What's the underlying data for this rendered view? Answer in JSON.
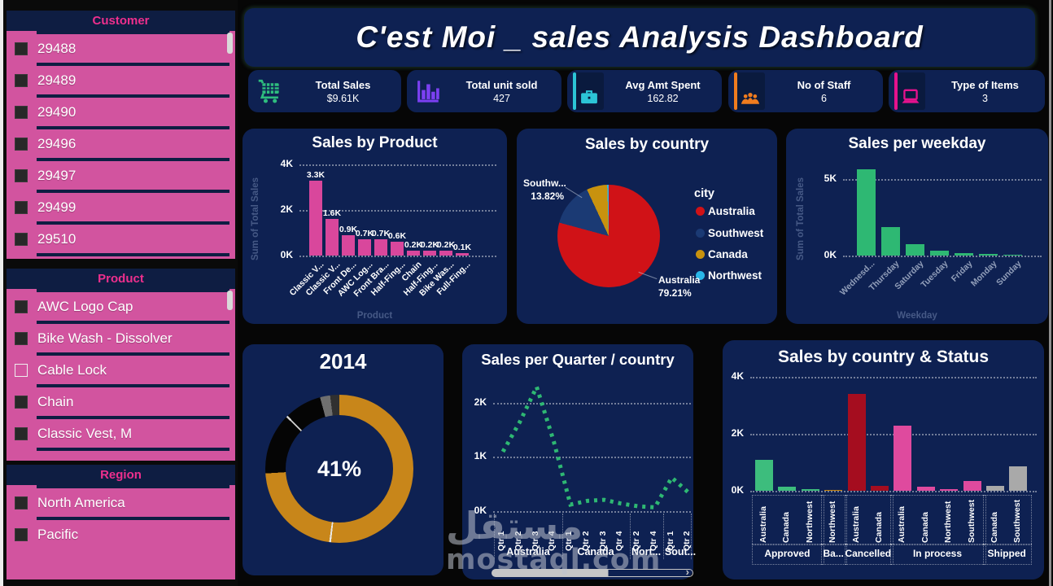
{
  "header": {
    "title": "C'est Moi _ sales Analysis Dashboard"
  },
  "sidebar": {
    "sections": [
      {
        "title": "Customer",
        "items": [
          {
            "label": "29488",
            "checked": true
          },
          {
            "label": "29489",
            "checked": true
          },
          {
            "label": "29490",
            "checked": true
          },
          {
            "label": "29496",
            "checked": true
          },
          {
            "label": "29497",
            "checked": true
          },
          {
            "label": "29499",
            "checked": true
          },
          {
            "label": "29510",
            "checked": true
          }
        ]
      },
      {
        "title": "Product",
        "items": [
          {
            "label": "AWC Logo Cap",
            "checked": true
          },
          {
            "label": "Bike Wash - Dissolver",
            "checked": true
          },
          {
            "label": "Cable Lock",
            "checked": false
          },
          {
            "label": "Chain",
            "checked": true
          },
          {
            "label": "Classic Vest, M",
            "checked": true
          }
        ]
      },
      {
        "title": "Region",
        "items": [
          {
            "label": "North America",
            "checked": true
          },
          {
            "label": "Pacific",
            "checked": true
          }
        ]
      }
    ]
  },
  "kpis": [
    {
      "label": "Total Sales",
      "value": "$9.61K",
      "icon": "cart-icon",
      "color": "#2ebd7e"
    },
    {
      "label": "Total unit sold",
      "value": "427",
      "icon": "bar-chart-icon",
      "color": "#7b40f2"
    },
    {
      "label": "Avg Amt Spent",
      "value": "162.82",
      "icon": "briefcase-icon",
      "color": "#2cc5d6"
    },
    {
      "label": "No of Staff",
      "value": "6",
      "icon": "people-icon",
      "color": "#f07c1e"
    },
    {
      "label": "Type of Items",
      "value": "3",
      "icon": "laptop-icon",
      "color": "#e5128d"
    }
  ],
  "chart_data": [
    {
      "type": "bar",
      "title": "Sales by Product",
      "categories": [
        "Classic V...",
        "Classic V...",
        "Front De...",
        "AWC Log...",
        "Front Bra...",
        "Half-Fing...",
        "Chain",
        "Half-Fing...",
        "Bike Was...",
        "Full-Fing..."
      ],
      "values": [
        3300,
        1600,
        900,
        700,
        700,
        600,
        200,
        200,
        200,
        100
      ],
      "value_labels": [
        "3.3K",
        "1.6K",
        "0.9K",
        "0.7K",
        "0.7K",
        "0.6K",
        "0.2K",
        "0.2K",
        "0.2K",
        "0.1K"
      ],
      "xlabel": "Product",
      "ylabel": "Sum of Total Sales",
      "yticks": [
        "0K",
        "2K",
        "4K"
      ],
      "ylim": [
        0,
        4000
      ],
      "grid": true,
      "color": "#d9479c"
    },
    {
      "type": "pie",
      "title": "Sales by country",
      "legend_title": "city",
      "legend_position": "right",
      "slices": [
        {
          "label": "Australia",
          "value": 79.21,
          "color": "#d01217"
        },
        {
          "label": "Southwest",
          "value": 13.82,
          "color": "#1b3a74"
        },
        {
          "label": "Canada",
          "value": 6.5,
          "color": "#c8920e"
        },
        {
          "label": "Northwest",
          "value": 0.47,
          "color": "#29b6e8"
        }
      ],
      "callouts": [
        {
          "label": "Southw...",
          "pct": "13.82%"
        },
        {
          "label": "Australia",
          "pct": "79.21%"
        }
      ]
    },
    {
      "type": "bar",
      "title": "Sales per weekday",
      "categories": [
        "Wednesd...",
        "Thursday",
        "Saturday",
        "Tuesday",
        "Friday",
        "Monday",
        "Sunday"
      ],
      "values": [
        5620,
        1840,
        750,
        300,
        150,
        80,
        60
      ],
      "xlabel": "Weekday",
      "ylabel": "Sum of Total Sales",
      "yticks": [
        "0K",
        "5K"
      ],
      "ylim": [
        0,
        6300
      ],
      "grid": true,
      "color": "#2eb873"
    },
    {
      "type": "donut",
      "title": "2014",
      "center_label": "41%",
      "segments": [
        {
          "pct": 51.8,
          "color": "#c8861a"
        },
        {
          "pct": 0.4,
          "color": "#e8e8e8"
        },
        {
          "pct": 21.8,
          "color": "#c8861a"
        },
        {
          "pct": 13.3,
          "color": "#050505"
        },
        {
          "pct": 0.4,
          "color": "#d0d0d0"
        },
        {
          "pct": 8.1,
          "color": "#050505"
        },
        {
          "pct": 2.2,
          "color": "#6f6f6f"
        },
        {
          "pct": 2.0,
          "color": "#303030"
        }
      ]
    },
    {
      "type": "line",
      "title": "Sales per Quarter / country",
      "style": "dotted",
      "color": "#2eb873",
      "groups": [
        {
          "name": "Australia",
          "quarters": [
            "Qtr 1",
            "Qtr 2",
            "Qtr 3",
            "Qtr 4"
          ]
        },
        {
          "name": "Canada",
          "quarters": [
            "Qtr 1",
            "Qtr 2",
            "Qtr 3",
            "Qtr 4"
          ]
        },
        {
          "name": "Nort...",
          "quarters": [
            "Qtr 2",
            "Qtr 4"
          ]
        },
        {
          "name": "Sout...",
          "quarters": [
            "Qtr 1",
            "Qtr 2"
          ]
        }
      ],
      "values": [
        1100,
        1650,
        2300,
        1300,
        120,
        190,
        210,
        140,
        90,
        70,
        620,
        340
      ],
      "yticks": [
        "0K",
        "1K",
        "2K"
      ],
      "ylim": [
        0,
        2500
      ],
      "grid": true,
      "has_scrollbar": true
    },
    {
      "type": "bar",
      "title": "Sales by country & Status",
      "yticks": [
        "0K",
        "2K",
        "4K"
      ],
      "ylim": [
        0,
        4300
      ],
      "grid": true,
      "groups": [
        {
          "name": "Approved",
          "color": "#3dbd7d",
          "bars": [
            {
              "label": "Australia",
              "value": 1100
            },
            {
              "label": "Canada",
              "value": 130
            },
            {
              "label": "Northwest",
              "value": 50
            }
          ]
        },
        {
          "name": "Ba...",
          "color": "#c8860e",
          "bars": [
            {
              "label": "Northwest",
              "value": 40
            }
          ]
        },
        {
          "name": "Cancelled",
          "color": "#a50d1f",
          "bars": [
            {
              "label": "Australia",
              "value": 3400
            },
            {
              "label": "Canada",
              "value": 180
            }
          ]
        },
        {
          "name": "In process",
          "color": "#df4a9e",
          "bars": [
            {
              "label": "Australia",
              "value": 2300
            },
            {
              "label": "Canada",
              "value": 150
            },
            {
              "label": "Northwest",
              "value": 50
            },
            {
              "label": "Southwest",
              "value": 350
            }
          ]
        },
        {
          "name": "Shipped",
          "color": "#a9a9a9",
          "bars": [
            {
              "label": "Canada",
              "value": 180
            },
            {
              "label": "Southwest",
              "value": 850
            }
          ]
        }
      ]
    }
  ],
  "watermark": {
    "line1": "مستقل",
    "line2": "mostaql.com"
  }
}
